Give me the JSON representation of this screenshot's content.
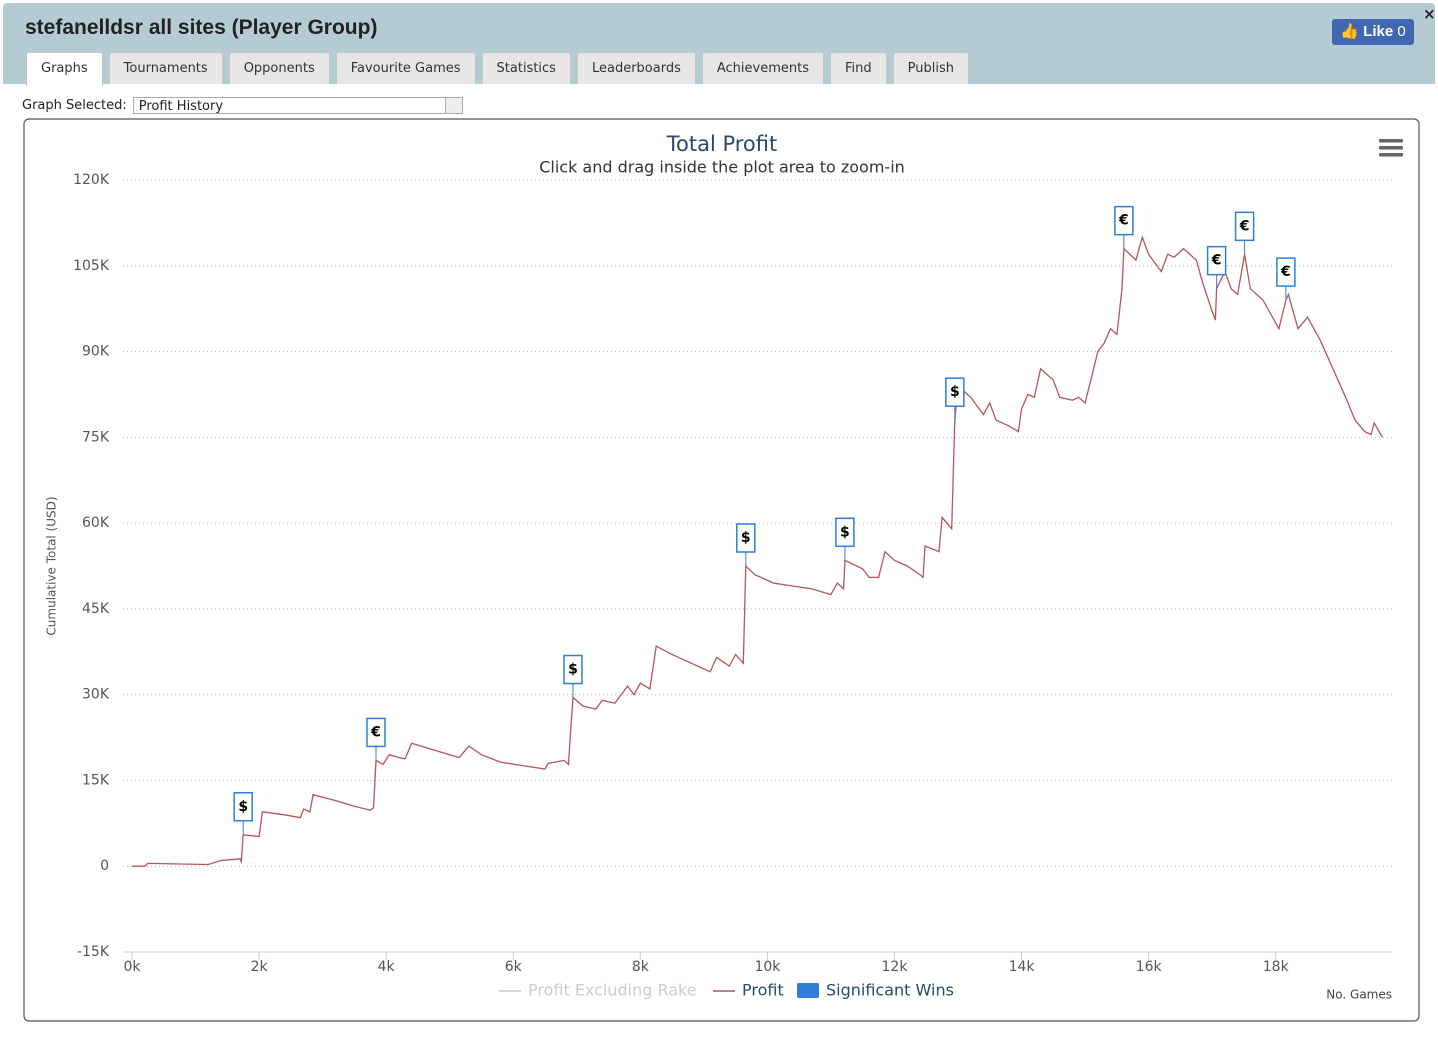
{
  "header": {
    "title": "stefanelldsr all sites (Player Group)",
    "like_label": "Like",
    "like_count": 0,
    "close": "×"
  },
  "tabs": [
    "Graphs",
    "Tournaments",
    "Opponents",
    "Favourite Games",
    "Statistics",
    "Leaderboards",
    "Achievements",
    "Find",
    "Publish"
  ],
  "active_tab": 0,
  "selector": {
    "label": "Graph Selected:",
    "value": "Profit History"
  },
  "chart_data": {
    "type": "line",
    "title": "Total Profit",
    "subtitle": "Click and drag inside the plot area to zoom-in",
    "x_label": "No. Games",
    "y_label": "Cumulative Total (USD)",
    "xlim": [
      0,
      19830
    ],
    "ylim": [
      -15000,
      120000
    ],
    "xticks": [
      {
        "value": 0,
        "label": "0k"
      },
      {
        "value": 2000,
        "label": "2k"
      },
      {
        "value": 4000,
        "label": "4k"
      },
      {
        "value": 6000,
        "label": "6k"
      },
      {
        "value": 8000,
        "label": "8k"
      },
      {
        "value": 10000,
        "label": "10k"
      },
      {
        "value": 12000,
        "label": "12k"
      },
      {
        "value": 14000,
        "label": "14k"
      },
      {
        "value": 16000,
        "label": "16k"
      },
      {
        "value": 18000,
        "label": "18k"
      }
    ],
    "yticks": [
      {
        "value": -15000,
        "label": "-15K"
      },
      0,
      {
        "value": 15000,
        "label": "15K"
      },
      {
        "value": 30000,
        "label": "30K"
      },
      {
        "value": 45000,
        "label": "45K"
      },
      {
        "value": 60000,
        "label": "60K"
      },
      {
        "value": 75000,
        "label": "75K"
      },
      {
        "value": 90000,
        "label": "90K"
      },
      {
        "value": 105000,
        "label": "105K"
      },
      {
        "value": 120000,
        "label": "120K"
      }
    ],
    "grid": true,
    "series": [
      {
        "name": "Profit Excluding Rake",
        "color": "#cccccc",
        "visible": false
      },
      {
        "name": "Profit",
        "color": "#b5545c",
        "x": [
          0,
          200,
          250,
          1200,
          1400,
          1700,
          1720,
          1750,
          2000,
          2050,
          2400,
          2650,
          2700,
          2800,
          2850,
          3200,
          3500,
          3750,
          3800,
          3840,
          3950,
          4050,
          4200,
          4300,
          4400,
          4700,
          5000,
          5150,
          5300,
          5500,
          5800,
          6200,
          6500,
          6550,
          6800,
          6870,
          6900,
          6940,
          7100,
          7300,
          7400,
          7600,
          7800,
          7900,
          8000,
          8150,
          8250,
          8500,
          8800,
          9100,
          9200,
          9400,
          9500,
          9620,
          9660,
          9800,
          10100,
          10400,
          10700,
          11000,
          11100,
          11200,
          11220,
          11500,
          11600,
          11750,
          11850,
          12000,
          12200,
          12400,
          12450,
          12480,
          12700,
          12750,
          12900,
          12950,
          13000,
          13200,
          13400,
          13500,
          13600,
          13800,
          13950,
          14000,
          14100,
          14200,
          14300,
          14500,
          14600,
          14800,
          14900,
          15000,
          15100,
          15200,
          15300,
          15400,
          15500,
          15580,
          15610,
          15800,
          15900,
          16000,
          16200,
          16300,
          16400,
          16550,
          16750,
          16850,
          17000,
          17050,
          17070,
          17200,
          17300,
          17400,
          17510,
          17600,
          17800,
          18050,
          18160,
          18200,
          18350,
          18500,
          18700,
          18900,
          19100,
          19250,
          19400,
          19500,
          19550,
          19680
        ],
        "values": [
          0,
          0,
          500,
          300,
          1000,
          1300,
          800,
          5500,
          5200,
          9500,
          9000,
          8500,
          10000,
          9500,
          12500,
          11500,
          10500,
          9800,
          10200,
          18500,
          17800,
          19500,
          19000,
          18800,
          21500,
          20500,
          19500,
          19000,
          21000,
          19500,
          18200,
          17500,
          17000,
          18000,
          18500,
          17800,
          23000,
          29500,
          28000,
          27500,
          29000,
          28500,
          31500,
          30000,
          32000,
          31000,
          38500,
          37000,
          35500,
          34000,
          36500,
          35000,
          37000,
          35500,
          52500,
          51000,
          49500,
          49000,
          48500,
          47500,
          49500,
          48500,
          53500,
          52000,
          50500,
          50500,
          55000,
          53500,
          52500,
          51000,
          50500,
          56000,
          55000,
          61000,
          59000,
          78000,
          84000,
          82000,
          79000,
          81000,
          78000,
          77000,
          76000,
          80000,
          82500,
          82000,
          87000,
          85000,
          82000,
          81500,
          82000,
          81000,
          85500,
          90000,
          91500,
          94000,
          93000,
          101000,
          108000,
          106000,
          110000,
          107000,
          104000,
          107000,
          106500,
          108000,
          106000,
          102000,
          97000,
          95500,
          101000,
          104000,
          101000,
          100000,
          107000,
          101000,
          99000,
          94000,
          99000,
          100000,
          94000,
          96000,
          92000,
          87000,
          82000,
          78000,
          76000,
          75500,
          77500,
          75000
        ]
      },
      {
        "name": "Significant Wins",
        "color": "#2f7ed8",
        "type": "flags",
        "x": [
          1750,
          3840,
          6940,
          9660,
          11220,
          12950,
          15610,
          17070,
          17510,
          18160
        ],
        "values": [
          5500,
          18500,
          29500,
          52500,
          53500,
          78000,
          108000,
          101000,
          107000,
          99000
        ],
        "labels": [
          "$",
          "€",
          "$",
          "$",
          "$",
          "$",
          "€",
          "€",
          "€",
          "€"
        ]
      }
    ]
  }
}
